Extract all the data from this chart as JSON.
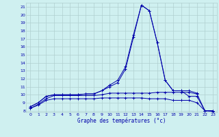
{
  "xlabel": "Graphe des températures (°c)",
  "bg_color": "#cff0f0",
  "grid_color": "#b0d0d0",
  "line_color": "#0000aa",
  "xlim": [
    -0.5,
    23.5
  ],
  "ylim": [
    7.8,
    21.5
  ],
  "yticks": [
    8,
    9,
    10,
    11,
    12,
    13,
    14,
    15,
    16,
    17,
    18,
    19,
    20,
    21
  ],
  "xticks": [
    0,
    1,
    2,
    3,
    4,
    5,
    6,
    7,
    8,
    9,
    10,
    11,
    12,
    13,
    14,
    15,
    16,
    17,
    18,
    19,
    20,
    21,
    22,
    23
  ],
  "series": [
    {
      "x": [
        0,
        1,
        2,
        3,
        4,
        5,
        6,
        7,
        8,
        9,
        10,
        11,
        12,
        13,
        14,
        15,
        16,
        17,
        18,
        19,
        20,
        21,
        22,
        23
      ],
      "y": [
        8.5,
        9.0,
        9.8,
        10.0,
        10.0,
        10.0,
        10.0,
        10.1,
        10.1,
        10.5,
        11.0,
        11.5,
        13.2,
        17.2,
        21.2,
        20.5,
        16.5,
        11.8,
        10.5,
        10.5,
        10.5,
        10.2,
        null,
        null
      ]
    },
    {
      "x": [
        0,
        1,
        2,
        3,
        4,
        5,
        6,
        7,
        8,
        9,
        10,
        11,
        12,
        13,
        14,
        15,
        16,
        17,
        18,
        19,
        20,
        21,
        22,
        23
      ],
      "y": [
        8.5,
        9.0,
        9.8,
        10.0,
        10.0,
        10.0,
        10.0,
        10.1,
        10.1,
        10.5,
        11.2,
        11.8,
        13.5,
        17.5,
        21.2,
        20.5,
        16.5,
        11.8,
        10.5,
        10.5,
        9.8,
        9.8,
        8.0,
        8.0
      ]
    },
    {
      "x": [
        0,
        1,
        2,
        3,
        4,
        5,
        6,
        7,
        8,
        9,
        10,
        11,
        12,
        13,
        14,
        15,
        16,
        17,
        18,
        19,
        20,
        21,
        22,
        23
      ],
      "y": [
        8.3,
        8.8,
        9.5,
        9.9,
        9.9,
        9.9,
        9.9,
        9.9,
        9.9,
        10.0,
        10.2,
        10.2,
        10.2,
        10.2,
        10.2,
        10.2,
        10.3,
        10.3,
        10.3,
        10.3,
        10.3,
        10.1,
        8.0,
        8.0
      ]
    },
    {
      "x": [
        0,
        1,
        2,
        3,
        4,
        5,
        6,
        7,
        8,
        9,
        10,
        11,
        12,
        13,
        14,
        15,
        16,
        17,
        18,
        19,
        20,
        21,
        22,
        23
      ],
      "y": [
        8.3,
        8.7,
        9.3,
        9.5,
        9.5,
        9.5,
        9.5,
        9.5,
        9.5,
        9.6,
        9.6,
        9.6,
        9.6,
        9.6,
        9.6,
        9.5,
        9.5,
        9.5,
        9.3,
        9.3,
        9.3,
        9.0,
        8.0,
        7.9
      ]
    }
  ]
}
